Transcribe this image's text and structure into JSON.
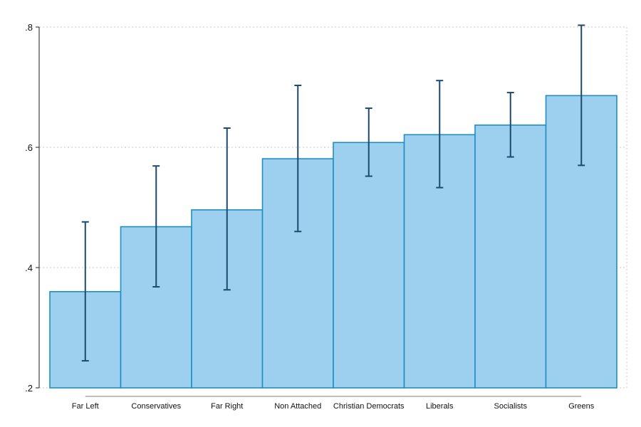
{
  "chart_data": {
    "type": "bar",
    "categories": [
      "Far Left",
      "Conservatives",
      "Far Right",
      "Non Attached",
      "Christian Democrats",
      "Liberals",
      "Socialists",
      "Greens"
    ],
    "values": [
      0.36,
      0.468,
      0.496,
      0.581,
      0.608,
      0.621,
      0.637,
      0.686
    ],
    "ci_low": [
      0.245,
      0.368,
      0.363,
      0.46,
      0.552,
      0.533,
      0.584,
      0.57
    ],
    "ci_high": [
      0.476,
      0.569,
      0.632,
      0.703,
      0.665,
      0.711,
      0.691,
      0.803
    ],
    "ylim": [
      0.2,
      0.8
    ],
    "yticks": [
      0.2,
      0.4,
      0.6,
      0.8
    ],
    "ytick_labels": [
      ".2",
      ".4",
      ".6",
      ".8"
    ],
    "title": "",
    "xlabel": "",
    "ylabel": "",
    "grid": true,
    "colors": {
      "bar_fill": "#9dcfee",
      "bar_edge": "#1f8fc0",
      "error_bar": "#1a4a6e",
      "grid": "#c8c8c8",
      "axis": "#444444"
    }
  }
}
